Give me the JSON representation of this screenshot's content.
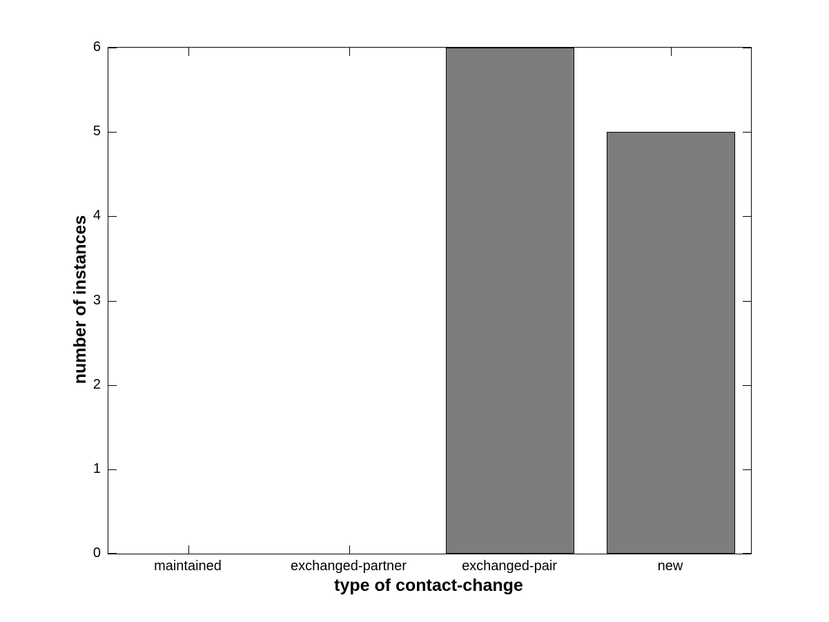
{
  "chart_data": {
    "type": "bar",
    "title": "",
    "xlabel": "type of contact-change",
    "ylabel": "number of instances",
    "categories": [
      "maintained",
      "exchanged-partner",
      "exchanged-pair",
      "new"
    ],
    "values": [
      0,
      0,
      6,
      5
    ],
    "yticks": [
      0,
      1,
      2,
      3,
      4,
      5,
      6
    ],
    "ylim": [
      0,
      6
    ],
    "xticks_mirrored_on_top": true,
    "yticks_mirrored_on_right": true,
    "grid": false,
    "legend": null,
    "bar_width_fraction": 0.8,
    "colors": {
      "bar_fill": "#7d7d7d",
      "bar_edge": "#000000",
      "axis": "#000000",
      "background": "#ffffff",
      "text": "#000000"
    }
  }
}
